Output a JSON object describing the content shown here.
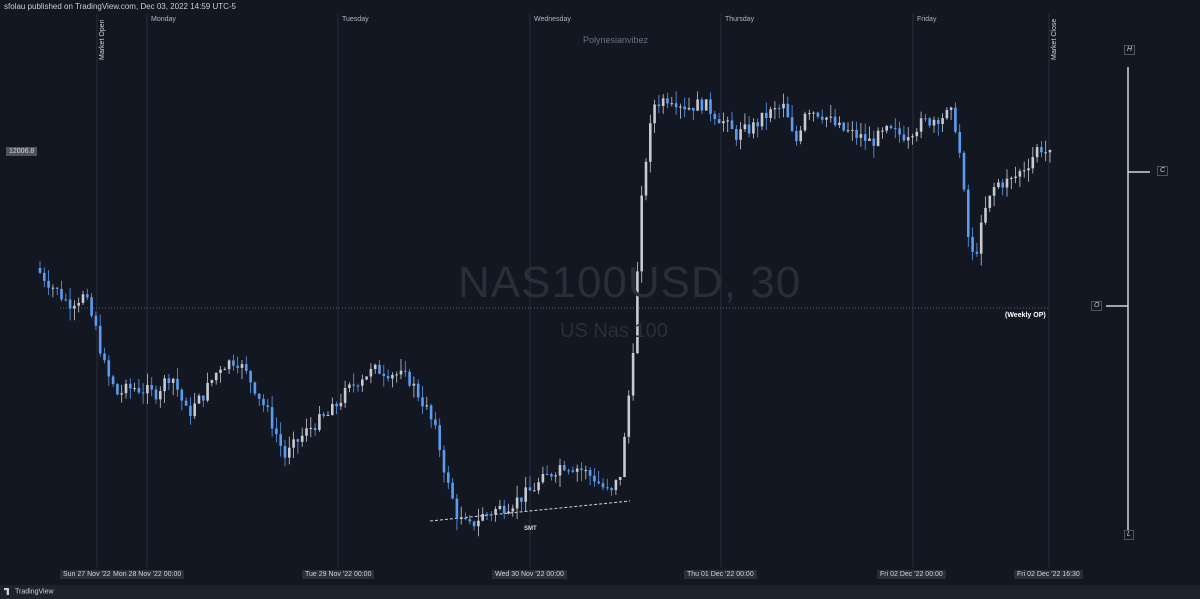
{
  "header": {
    "publisher_text": "sfolau published on TradingView.com, Dec 03, 2022 14:59 UTC-5"
  },
  "watermark": {
    "symbol": "NAS100USD, 30",
    "name": "US Nas 100"
  },
  "author": "Polynesianvibez",
  "price_label": "12006.8",
  "annotations": {
    "weekly_op": "(Weekly OP)",
    "smt": "SMT"
  },
  "markers": {
    "market_open": "Market Open",
    "market_close": "Market Close"
  },
  "days": [
    "Monday",
    "Tuesday",
    "Wednesday",
    "Thursday",
    "Friday"
  ],
  "time_axis": [
    "Sun 27 Nov '22",
    "Mon 28 Nov '22   00:00",
    "Tue 29 Nov '22   00:00",
    "Wed 30 Nov '22   00:00",
    "Thu 01 Dec '22   00:00",
    "Fri 02 Dec '22   00:00",
    "Fri 02 Dec '22   16:30"
  ],
  "hloc_labels": {
    "h": "H",
    "c": "C",
    "o": "O",
    "l": "L"
  },
  "footer": {
    "brand": "TradingView"
  },
  "colors": {
    "background": "#131722",
    "up_candle": "#c7cad1",
    "down_candle": "#5b9cf0",
    "grid": "#2a2e39"
  },
  "chart_data": {
    "type": "candlestick",
    "symbol": "NAS100USD",
    "timeframe": "30",
    "price_label_value": 12006.8,
    "weekly_open_line": true,
    "path": [
      [
        0,
        0.0
      ],
      [
        0.03,
        -0.05
      ],
      [
        0.06,
        -0.1
      ],
      [
        0.09,
        -0.08
      ],
      [
        0.11,
        -0.17
      ],
      [
        0.13,
        -0.3
      ],
      [
        0.15,
        -0.36
      ],
      [
        0.18,
        -0.34
      ],
      [
        0.22,
        -0.36
      ],
      [
        0.25,
        -0.3
      ],
      [
        0.28,
        -0.42
      ],
      [
        0.31,
        -0.36
      ],
      [
        0.34,
        -0.28
      ],
      [
        0.37,
        -0.26
      ],
      [
        0.4,
        -0.33
      ],
      [
        0.43,
        -0.42
      ],
      [
        0.46,
        -0.54
      ],
      [
        0.48,
        -0.5
      ],
      [
        0.51,
        -0.45
      ],
      [
        0.54,
        -0.42
      ],
      [
        0.57,
        -0.36
      ],
      [
        0.6,
        -0.31
      ],
      [
        0.63,
        -0.29
      ],
      [
        0.66,
        -0.3
      ],
      [
        0.69,
        -0.32
      ],
      [
        0.72,
        -0.4
      ],
      [
        0.74,
        -0.48
      ],
      [
        0.76,
        -0.62
      ],
      [
        0.78,
        -0.72
      ],
      [
        0.8,
        -0.74
      ],
      [
        0.82,
        -0.71
      ],
      [
        0.85,
        -0.69
      ],
      [
        0.88,
        -0.67
      ],
      [
        0.91,
        -0.64
      ],
      [
        0.94,
        -0.6
      ],
      [
        0.97,
        -0.56
      ],
      [
        1.0,
        -0.57
      ],
      [
        1.03,
        -0.6
      ],
      [
        1.06,
        -0.65
      ],
      [
        1.08,
        -0.58
      ],
      [
        1.1,
        -0.26
      ],
      [
        1.12,
        0.26
      ],
      [
        1.14,
        0.47
      ],
      [
        1.17,
        0.49
      ],
      [
        1.2,
        0.46
      ],
      [
        1.23,
        0.47
      ],
      [
        1.26,
        0.43
      ],
      [
        1.29,
        0.38
      ],
      [
        1.32,
        0.4
      ],
      [
        1.35,
        0.44
      ],
      [
        1.38,
        0.46
      ],
      [
        1.4,
        0.35
      ],
      [
        1.42,
        0.46
      ],
      [
        1.45,
        0.44
      ],
      [
        1.48,
        0.4
      ],
      [
        1.51,
        0.38
      ],
      [
        1.54,
        0.36
      ],
      [
        1.57,
        0.39
      ],
      [
        1.6,
        0.38
      ],
      [
        1.63,
        0.41
      ],
      [
        1.66,
        0.43
      ],
      [
        1.69,
        0.44
      ],
      [
        1.7,
        0.38
      ],
      [
        1.72,
        0.08
      ],
      [
        1.73,
        0.02
      ],
      [
        1.75,
        0.16
      ],
      [
        1.77,
        0.24
      ],
      [
        1.8,
        0.25
      ],
      [
        1.83,
        0.3
      ],
      [
        1.85,
        0.35
      ],
      [
        1.87,
        0.32
      ]
    ]
  }
}
